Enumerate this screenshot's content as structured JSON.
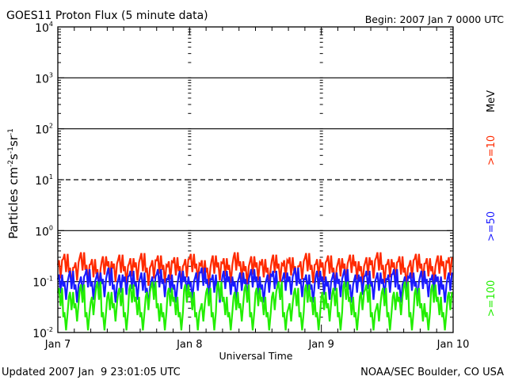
{
  "chart_data": {
    "type": "line",
    "title": "GOES11 Proton Flux (5 minute data)",
    "begin": "Begin: 2007 Jan 7 0000 UTC",
    "xlabel": "Universal Time",
    "ylabel": "Particles cm",
    "ylabel_sup": [
      "-2",
      "-1",
      "-1"
    ],
    "ylabel_parts": [
      "s",
      "sr"
    ],
    "yscale": "log",
    "ylim": [
      0.01,
      10000
    ],
    "ytick_base": "10",
    "ytick_exps": [
      "-2",
      "-1",
      "0",
      "1",
      "2",
      "3",
      "4"
    ],
    "xlim_days": [
      0,
      3
    ],
    "xticks": [
      {
        "day": 0,
        "label": "Jan 7"
      },
      {
        "day": 1,
        "label": "Jan 8"
      },
      {
        "day": 2,
        "label": "Jan 9"
      },
      {
        "day": 3,
        "label": "Jan 10"
      }
    ],
    "gridlines": [
      {
        "exp": 3,
        "style": "solid"
      },
      {
        "exp": 2,
        "style": "solid"
      },
      {
        "exp": 1,
        "style": "dashed"
      },
      {
        "exp": 0,
        "style": "solid"
      },
      {
        "exp": -1,
        "style": "solid"
      }
    ],
    "unit_label": "MeV",
    "series": [
      {
        "name": ">=10",
        "color": "#ff2a00",
        "values": [
          0.21,
          0.28,
          0.15,
          0.19,
          0.3,
          0.17,
          0.22,
          0.14,
          0.25,
          0.2,
          0.18,
          0.27,
          0.16,
          0.23,
          0.19,
          0.29,
          0.15,
          0.21,
          0.26,
          0.17,
          0.2,
          0.24,
          0.16,
          0.22,
          0.28,
          0.18,
          0.21,
          0.15,
          0.26,
          0.19,
          0.23,
          0.17,
          0.3,
          0.2,
          0.16,
          0.25,
          0.19,
          0.22,
          0.15,
          0.27,
          0.18,
          0.21,
          0.24,
          0.16,
          0.2,
          0.29,
          0.17,
          0.22,
          0.19,
          0.26,
          0.15,
          0.23,
          0.18,
          0.27,
          0.2,
          0.16,
          0.24,
          0.21,
          0.3,
          0.17,
          0.22,
          0.19,
          0.25,
          0.15,
          0.21,
          0.28,
          0.18,
          0.23,
          0.16,
          0.26,
          0.2,
          0.24
        ]
      },
      {
        "name": ">=50",
        "color": "#1a1aff",
        "values": [
          0.11,
          0.08,
          0.13,
          0.07,
          0.1,
          0.14,
          0.08,
          0.12,
          0.09,
          0.15,
          0.07,
          0.11,
          0.1,
          0.13,
          0.08,
          0.12,
          0.06,
          0.1,
          0.14,
          0.09,
          0.11,
          0.07,
          0.13,
          0.1,
          0.08,
          0.12,
          0.15,
          0.09,
          0.11,
          0.07,
          0.13,
          0.1,
          0.08,
          0.12,
          0.09,
          0.14,
          0.1,
          0.07,
          0.11,
          0.13,
          0.08,
          0.12,
          0.1,
          0.15,
          0.09,
          0.11,
          0.07,
          0.13,
          0.1,
          0.08,
          0.12,
          0.09,
          0.14,
          0.07,
          0.11,
          0.1,
          0.13,
          0.08,
          0.12,
          0.09,
          0.11,
          0.14,
          0.07,
          0.1,
          0.12,
          0.08,
          0.13,
          0.09,
          0.11,
          0.1,
          0.07,
          0.12
        ]
      },
      {
        "name": ">=100",
        "color": "#22ee00",
        "values": [
          0.06,
          0.02,
          0.05,
          0.03,
          0.07,
          0.02,
          0.04,
          0.08,
          0.02,
          0.05,
          0.03,
          0.06,
          0.02,
          0.07,
          0.04,
          0.02,
          0.05,
          0.08,
          0.03,
          0.02,
          0.06,
          0.04,
          0.02,
          0.07,
          0.05,
          0.02,
          0.03,
          0.06,
          0.02,
          0.08,
          0.04,
          0.02,
          0.05,
          0.03,
          0.07,
          0.02,
          0.06,
          0.04,
          0.02,
          0.05,
          0.08,
          0.02,
          0.03,
          0.06,
          0.02,
          0.07,
          0.04,
          0.02,
          0.05,
          0.03,
          0.06,
          0.02,
          0.08,
          0.04,
          0.02,
          0.05,
          0.07,
          0.02,
          0.03,
          0.06,
          0.02,
          0.05,
          0.04,
          0.08,
          0.02,
          0.06,
          0.03,
          0.02,
          0.07,
          0.04,
          0.02,
          0.05
        ]
      }
    ]
  },
  "footer": {
    "updated": "Updated 2007 Jan  9 23:01:05 UTC",
    "credit": "NOAA/SEC Boulder, CO USA"
  }
}
